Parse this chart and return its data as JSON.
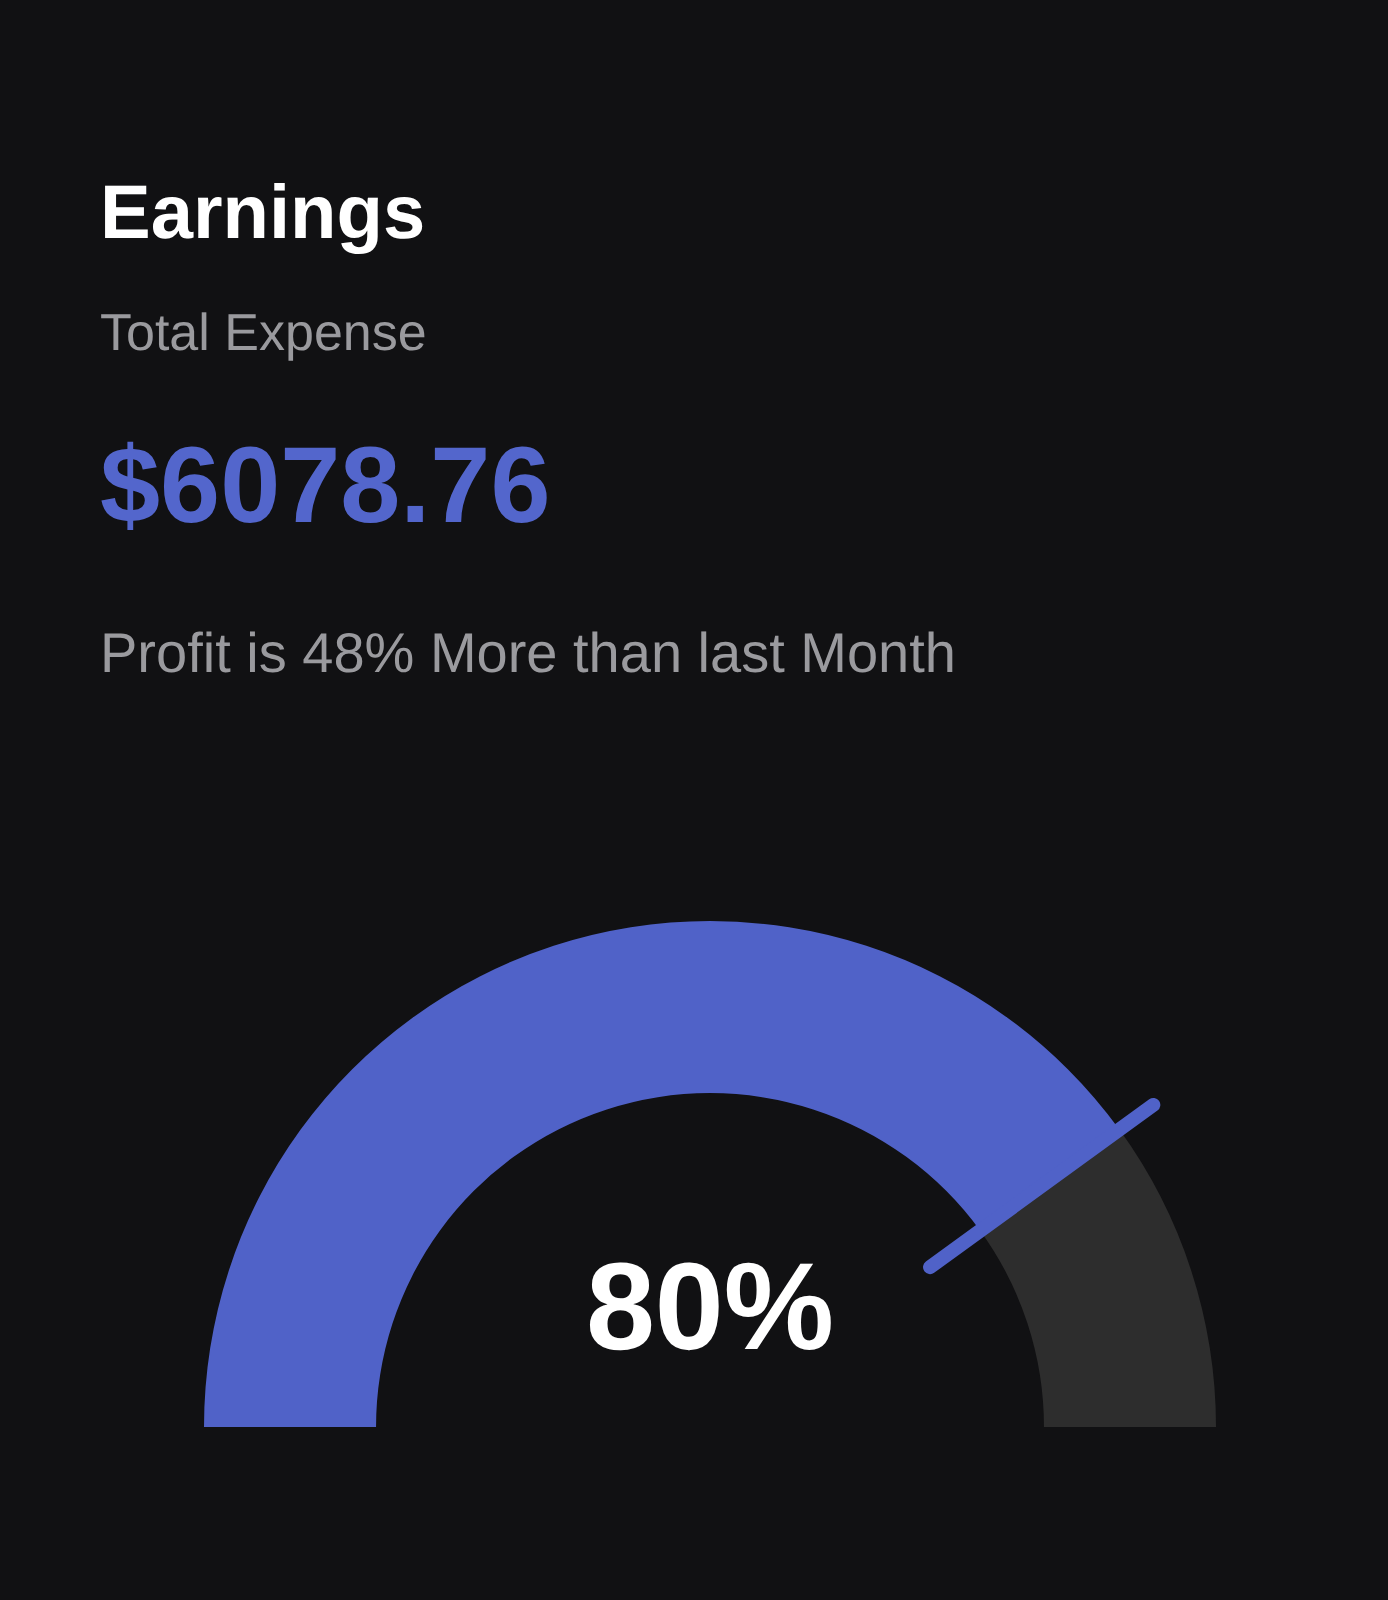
{
  "chart_data": {
    "type": "donut",
    "title": "Earnings",
    "subtitle": "Total Expense",
    "annotations": [
      "$6078.76",
      "Profit is 48% More than last Month"
    ],
    "categories": [
      null,
      null
    ],
    "values": [
      80,
      20
    ],
    "colors": [
      "#5062c8",
      "#2d2d2d"
    ],
    "value_labels": [
      "80%",
      null
    ]
  }
}
